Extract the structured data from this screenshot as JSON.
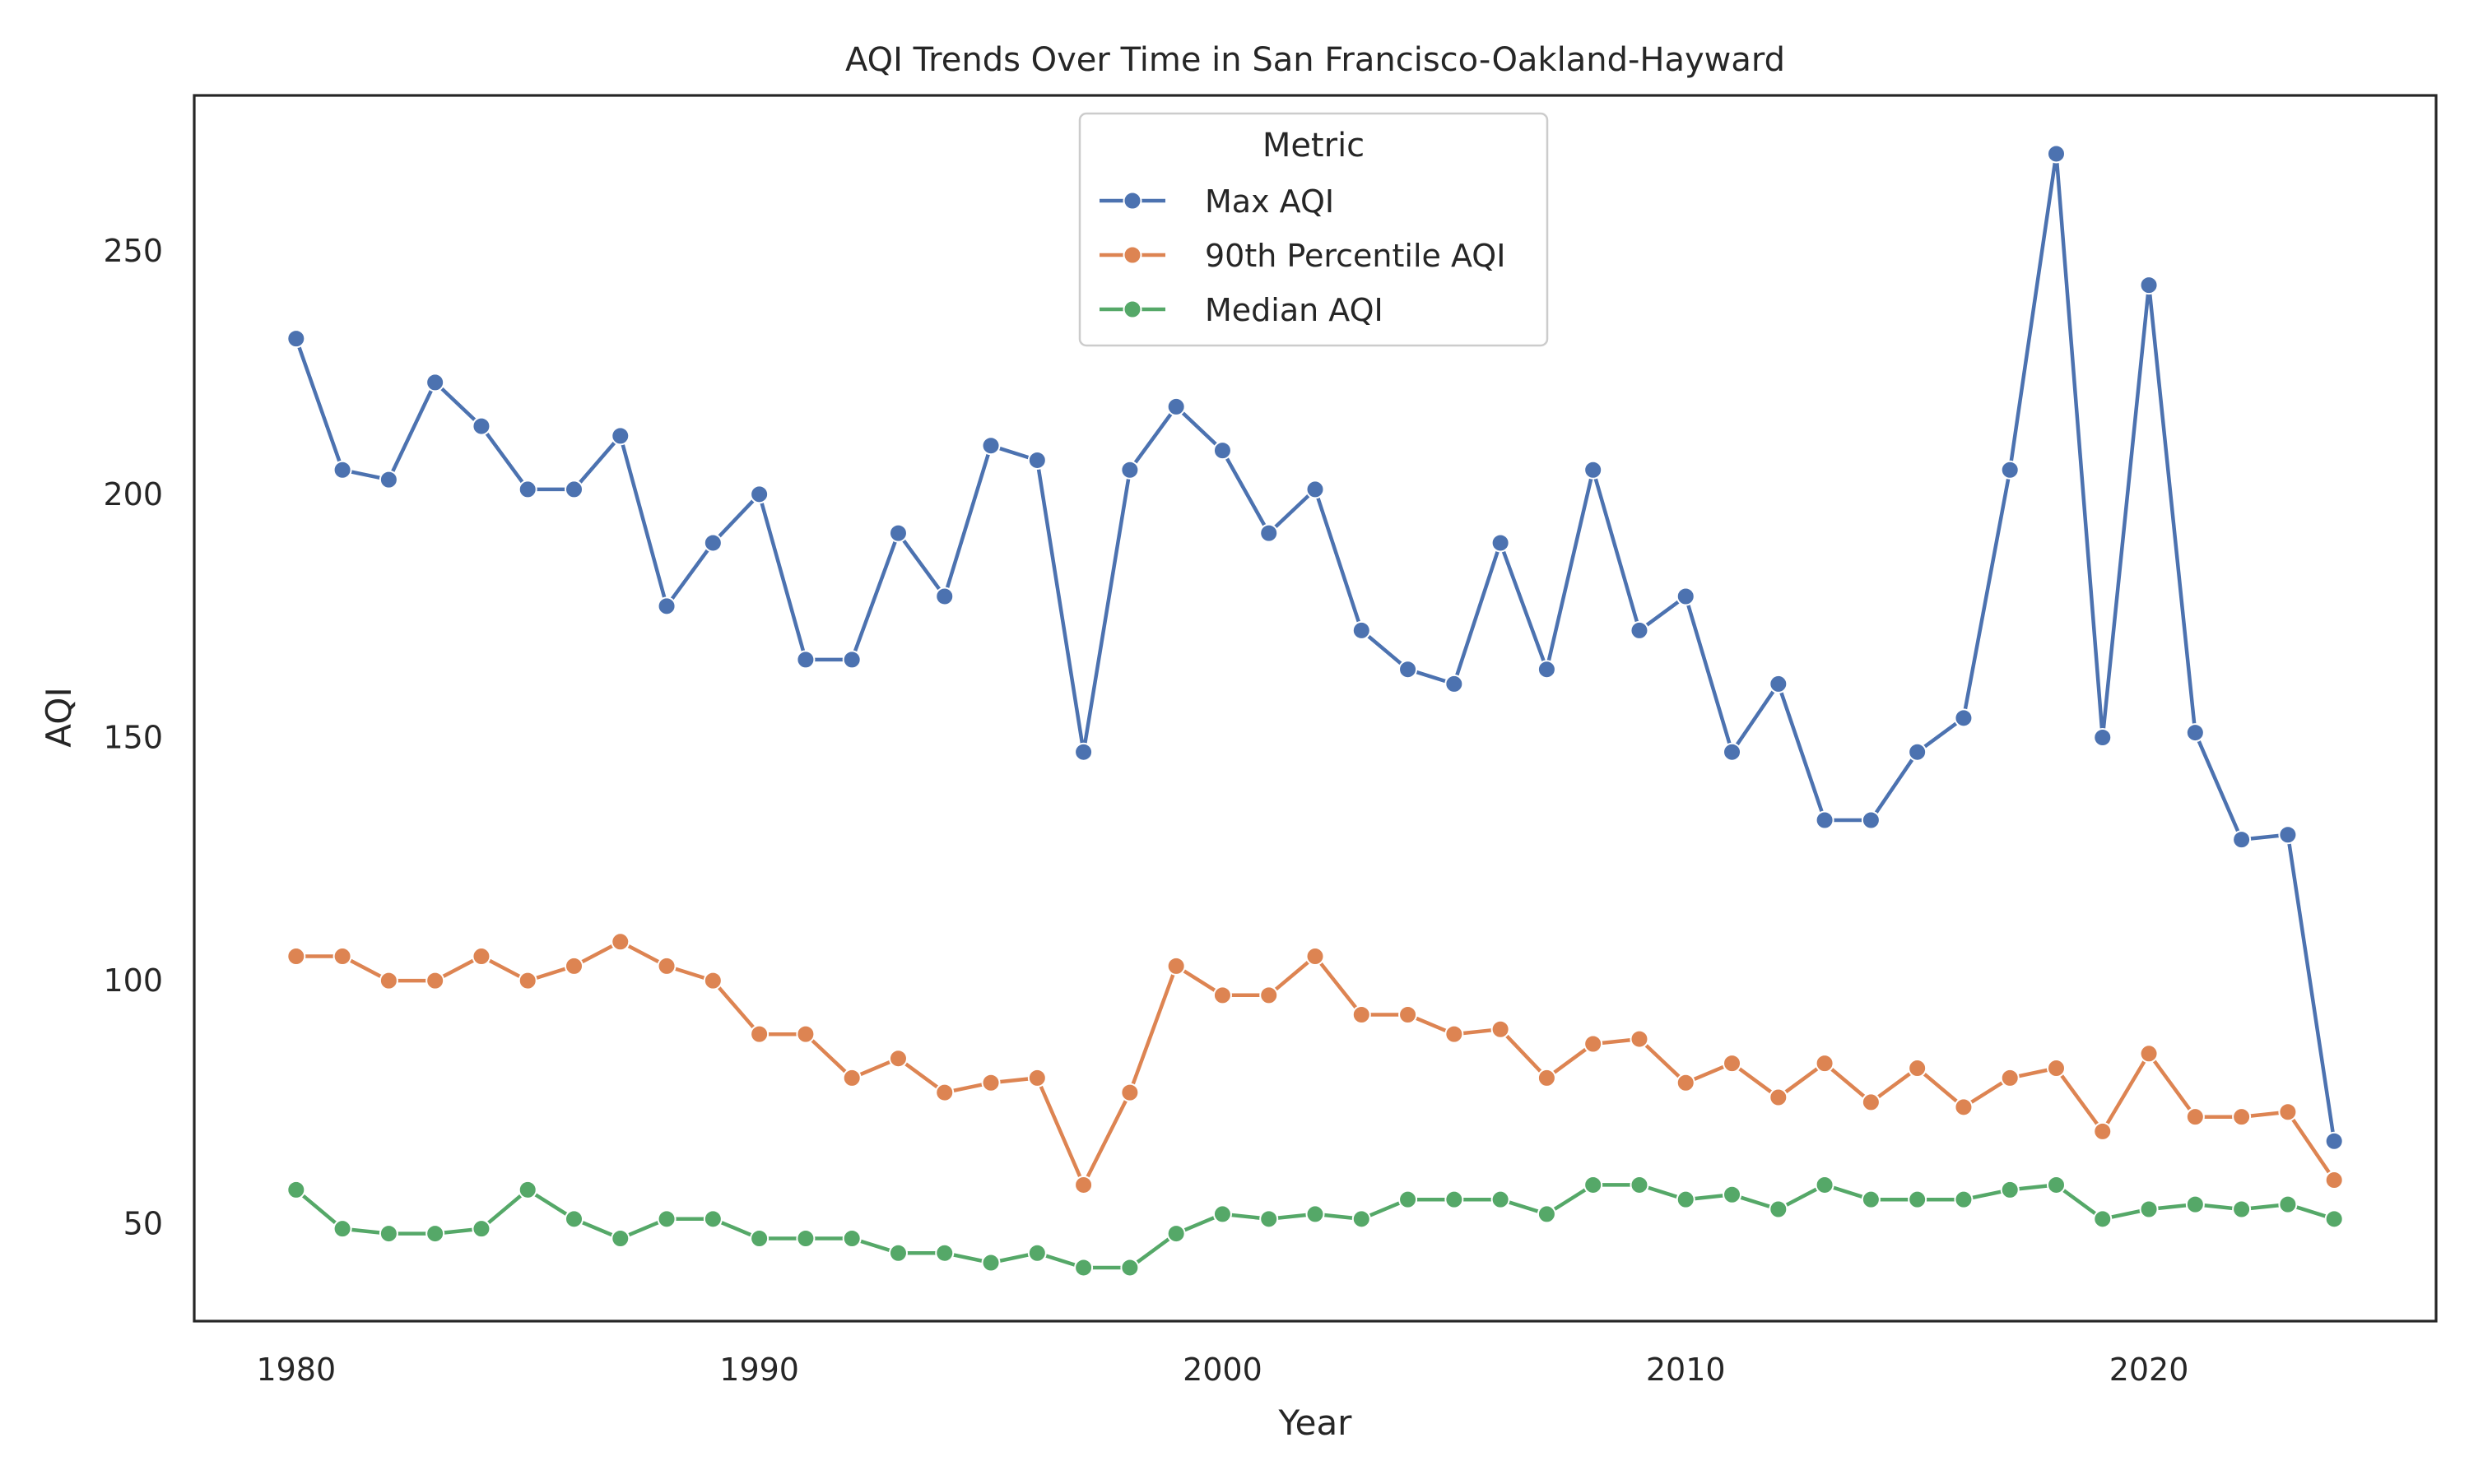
{
  "chart_data": {
    "type": "line",
    "title": "AQI Trends Over Time in San Francisco-Oakland-Hayward",
    "xlabel": "Year",
    "ylabel": "AQI",
    "xlim": [
      1977.8,
      2026.2
    ],
    "ylim": [
      30,
      282
    ],
    "x_ticks": [
      1980,
      1990,
      2000,
      2010,
      2020
    ],
    "y_ticks": [
      50,
      100,
      150,
      200,
      250
    ],
    "grid": false,
    "legend": {
      "title": "Metric",
      "placement": "top-center"
    },
    "x": [
      1980,
      1981,
      1982,
      1983,
      1984,
      1985,
      1986,
      1987,
      1988,
      1989,
      1990,
      1991,
      1992,
      1993,
      1994,
      1995,
      1996,
      1997,
      1998,
      1999,
      2000,
      2001,
      2002,
      2003,
      2004,
      2005,
      2006,
      2007,
      2008,
      2009,
      2010,
      2011,
      2012,
      2013,
      2014,
      2015,
      2016,
      2017,
      2018,
      2019,
      2020,
      2021,
      2022,
      2023,
      2024
    ],
    "series": [
      {
        "name": "Max AQI",
        "color": "#4c72b0",
        "values": [
          232,
          205,
          203,
          223,
          214,
          201,
          201,
          212,
          177,
          190,
          200,
          166,
          166,
          192,
          179,
          210,
          207,
          147,
          205,
          218,
          209,
          192,
          201,
          172,
          164,
          161,
          190,
          164,
          205,
          172,
          179,
          147,
          161,
          133,
          133,
          147,
          154,
          205,
          270,
          150,
          243,
          151,
          129,
          130,
          67
        ]
      },
      {
        "name": "90th Percentile AQI",
        "color": "#dd8452",
        "values": [
          105,
          105,
          100,
          100,
          105,
          100,
          103,
          108,
          103,
          100,
          89,
          89,
          80,
          84,
          77,
          79,
          80,
          58,
          77,
          103,
          97,
          97,
          105,
          93,
          93,
          89,
          90,
          80,
          87,
          88,
          79,
          83,
          76,
          83,
          75,
          82,
          74,
          80,
          82,
          69,
          85,
          72,
          72,
          73,
          59
        ]
      },
      {
        "name": "Median AQI",
        "color": "#55a868",
        "values": [
          57,
          49,
          48,
          48,
          49,
          57,
          51,
          47,
          51,
          51,
          47,
          47,
          47,
          44,
          44,
          42,
          44,
          41,
          41,
          48,
          52,
          51,
          52,
          51,
          55,
          55,
          55,
          52,
          58,
          58,
          55,
          56,
          53,
          58,
          55,
          55,
          55,
          57,
          58,
          51,
          53,
          54,
          53,
          54,
          51
        ]
      }
    ]
  }
}
